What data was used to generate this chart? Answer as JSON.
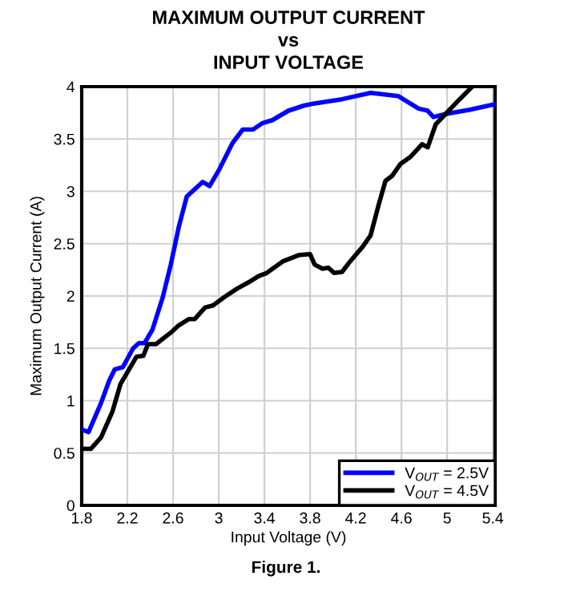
{
  "chart_data": {
    "type": "line",
    "title": "MAXIMUM OUTPUT CURRENT\nvs\nINPUT VOLTAGE",
    "xlabel": "Input Voltage (V)",
    "ylabel": "Maximum Output Current (A)",
    "annotations": [
      "Figure 1."
    ],
    "xlim": [
      1.8,
      5.42
    ],
    "xticks": [
      1.8,
      2.2,
      2.6,
      3,
      3.4,
      3.8,
      4.2,
      4.6,
      5,
      5.4
    ],
    "ylim": [
      0,
      4
    ],
    "yticks": [
      0,
      0.5,
      1,
      1.5,
      2,
      2.5,
      3,
      3.5,
      4
    ],
    "grid": true,
    "legend": "bottom right",
    "marker": "none",
    "line_style": "solid",
    "series": [
      {
        "name": "V$_{OUT}$ = 2.5V",
        "color": "#0000ff",
        "x": [
          1.81,
          1.86,
          1.97,
          2.04,
          2.09,
          2.16,
          2.25,
          2.3,
          2.35,
          2.42,
          2.51,
          2.58,
          2.65,
          2.72,
          2.79,
          2.86,
          2.92,
          3.0,
          3.12,
          3.21,
          3.3,
          3.38,
          3.47,
          3.61,
          3.75,
          3.84,
          4.08,
          4.33,
          4.57,
          4.75,
          4.83,
          4.88,
          4.99,
          5.2,
          5.41
        ],
        "values": [
          0.72,
          0.7,
          0.98,
          1.19,
          1.3,
          1.32,
          1.5,
          1.55,
          1.55,
          1.68,
          1.99,
          2.3,
          2.66,
          2.95,
          3.02,
          3.09,
          3.05,
          3.2,
          3.46,
          3.59,
          3.59,
          3.65,
          3.68,
          3.77,
          3.82,
          3.84,
          3.88,
          3.94,
          3.91,
          3.79,
          3.77,
          3.71,
          3.74,
          3.78,
          3.83
        ]
      },
      {
        "name": "V$_{OUT}$ = 4.5V",
        "color": "#000000",
        "x": [
          1.81,
          1.88,
          1.97,
          2.07,
          2.14,
          2.21,
          2.28,
          2.34,
          2.38,
          2.45,
          2.58,
          2.65,
          2.74,
          2.79,
          2.88,
          2.95,
          3.05,
          3.16,
          3.26,
          3.35,
          3.42,
          3.56,
          3.7,
          3.8,
          3.84,
          3.91,
          3.96,
          4.01,
          4.08,
          4.15,
          4.26,
          4.33,
          4.4,
          4.46,
          4.52,
          4.59,
          4.68,
          4.78,
          4.83,
          4.9,
          4.97,
          5.11,
          5.22
        ],
        "values": [
          0.54,
          0.54,
          0.65,
          0.9,
          1.16,
          1.29,
          1.42,
          1.43,
          1.54,
          1.54,
          1.65,
          1.72,
          1.78,
          1.78,
          1.89,
          1.91,
          1.99,
          2.07,
          2.13,
          2.19,
          2.22,
          2.33,
          2.39,
          2.4,
          2.3,
          2.26,
          2.27,
          2.22,
          2.23,
          2.33,
          2.47,
          2.58,
          2.87,
          3.1,
          3.15,
          3.26,
          3.33,
          3.45,
          3.42,
          3.64,
          3.72,
          3.88,
          4.0
        ]
      }
    ]
  }
}
